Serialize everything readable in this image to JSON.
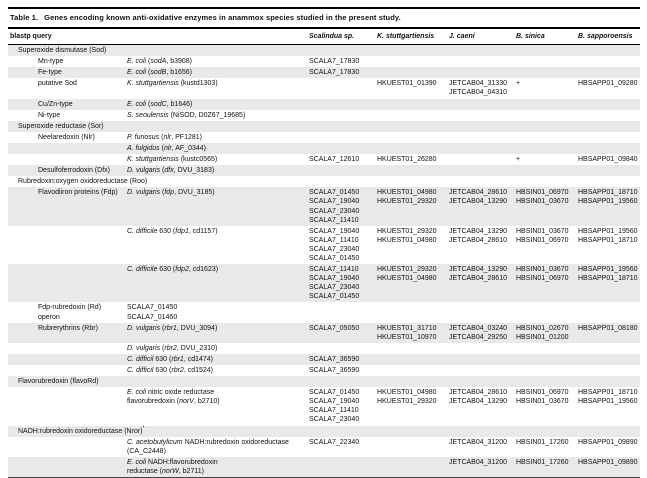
{
  "table": {
    "caption_label": "Table 1.",
    "caption_text": "Genes encoding known anti-oxidative enzymes in anammox species studied in the present study.",
    "columns": {
      "query": "blastp query",
      "species": [
        "Scalindua sp.",
        "K. stuttgartiensis",
        "J. caeni",
        "B. sinica",
        "B. sapporoensis"
      ]
    },
    "stripe_color": "#e9e9e9",
    "rows": [
      {
        "type": "section",
        "label": "Superoxide dismutase (Sod)",
        "sup": ""
      },
      {
        "type": "data",
        "enzyme": "Mn-type",
        "query": [
          "*E. coli* (*sodA*, b3908)"
        ],
        "sca": [
          "SCALA7_17830"
        ],
        "kst": [],
        "jca": [],
        "bsi": [],
        "bsa": []
      },
      {
        "type": "data",
        "enzyme": "Fe-type",
        "query": [
          "*E. coli* (*sodB*, b1656)"
        ],
        "sca": [
          "SCALA7_17830"
        ],
        "kst": [],
        "jca": [],
        "bsi": [],
        "bsa": []
      },
      {
        "type": "data",
        "enzyme": "putative Sod",
        "query": [
          "*K. stuttgartiensis* (kustd1303)"
        ],
        "sca": [],
        "kst": [
          "HKUEST01_01390"
        ],
        "jca": [
          "JETCAB04_31330",
          "JETCAB04_04310"
        ],
        "bsi": [
          "+"
        ],
        "bsa": [
          "HBSAPP01_09280"
        ]
      },
      {
        "type": "data",
        "enzyme": "Cu/Zn-type",
        "query": [
          "*E. coli* (*sodC*, b1646)"
        ],
        "sca": [],
        "kst": [],
        "jca": [],
        "bsi": [],
        "bsa": []
      },
      {
        "type": "data",
        "enzyme": "Ni-type",
        "query": [
          "*S. seoulensis* (NiSOD, D0Z67_19685)"
        ],
        "sca": [],
        "kst": [],
        "jca": [],
        "bsi": [],
        "bsa": []
      },
      {
        "type": "section",
        "label": "Superoxide reductase (Sor)",
        "sup": ""
      },
      {
        "type": "data",
        "enzyme": "Neelaredoxin (Nlr)",
        "query": [
          "*P. furiosus* (*nlr*, PF1281)"
        ],
        "sca": [],
        "kst": [],
        "jca": [],
        "bsi": [],
        "bsa": []
      },
      {
        "type": "data",
        "enzyme": "",
        "query": [
          "*A. fulgidus* (*nlr*, AF_0344)"
        ],
        "sca": [],
        "kst": [],
        "jca": [],
        "bsi": [],
        "bsa": []
      },
      {
        "type": "data",
        "enzyme": "",
        "query": [
          "*K. stuttgartiensis* (kustc0565)"
        ],
        "sca": [
          "SCALA7_12610"
        ],
        "kst": [
          "HKUEST01_26280"
        ],
        "jca": [],
        "bsi": [
          "+"
        ],
        "bsa": [
          "HBSAPP01_09840"
        ]
      },
      {
        "type": "data",
        "enzyme": "Desulfoferrodoxin (Dfx)",
        "query": [
          "*D. vulgaris* (*dfx*, DVU_3183)"
        ],
        "sca": [],
        "kst": [],
        "jca": [],
        "bsi": [],
        "bsa": []
      },
      {
        "type": "section",
        "label": "Rubredoxin:oxygen oxidoreductase (Roo)",
        "sup": ""
      },
      {
        "type": "data",
        "enzyme": "Flavodiiron proteins (Fdp)",
        "query": [
          "*D. vulgaris* (*fdp*, DVU_3185)"
        ],
        "sca": [
          "SCALA7_01450",
          "SCALA7_19040",
          "SCALA7_23040",
          "SCALA7_11410"
        ],
        "kst": [
          "HKUEST01_04980",
          "HKUEST01_29320"
        ],
        "jca": [
          "JETCAB04_28610",
          "JETCAB04_13290"
        ],
        "bsi": [
          "HBSIN01_06970",
          "HBSIN01_03670"
        ],
        "bsa": [
          "HBSAPP01_18710",
          "HBSAPP01_19560"
        ]
      },
      {
        "type": "data",
        "enzyme": "",
        "query": [
          "*C. difficile* 630 (*fdp1*, cd1157)"
        ],
        "sca": [
          "SCALA7_19040",
          "SCALA7_11410",
          "SCALA7_23040",
          "SCALA7_01450"
        ],
        "kst": [
          "HKUEST01_29320",
          "HKUEST01_04980"
        ],
        "jca": [
          "JETCAB04_13290",
          "JETCAB04_28610"
        ],
        "bsi": [
          "HBSIN01_03670",
          "HBSIN01_06970"
        ],
        "bsa": [
          "HBSAPP01_19560",
          "HBSAPP01_18710"
        ]
      },
      {
        "type": "data",
        "enzyme": "",
        "query": [
          "*C. difficile* 630 (*fdp2*, cd1623)"
        ],
        "sca": [
          "SCALA7_11410",
          "SCALA7_19040",
          "SCALA7_23040",
          "SCALA7_01450"
        ],
        "kst": [
          "HKUEST01_29320",
          "HKUEST01_04980"
        ],
        "jca": [
          "JETCAB04_13290",
          "JETCAB04_28610"
        ],
        "bsi": [
          "HBSIN01_03670",
          "HBSIN01_06970"
        ],
        "bsa": [
          "HBSAPP01_19560",
          "HBSAPP01_18710"
        ]
      },
      {
        "type": "data",
        "enzyme": "Fdp-rubredoxin (Rd) operon",
        "query": [
          "SCALA7_01450",
          "SCALA7_01460"
        ],
        "sca": [],
        "kst": [],
        "jca": [],
        "bsi": [],
        "bsa": []
      },
      {
        "type": "data",
        "enzyme": "Rubrerythrins (Rbr)",
        "query": [
          "*D. vulgaris* (*rbr1*, DVU_3094)"
        ],
        "sca": [
          "SCALA7_05050"
        ],
        "kst": [
          "HKUEST01_31710",
          "HKUEST01_10970"
        ],
        "jca": [
          "JETCAB04_03240",
          "JETCAB04_29250"
        ],
        "bsi": [
          "HBSIN01_02670",
          "HBSIN01_01200"
        ],
        "bsa": [
          "HBSAPP01_08180"
        ]
      },
      {
        "type": "data",
        "enzyme": "",
        "query": [
          "*D. vulgaris* (*rbr2*, DVU_2310)"
        ],
        "sca": [],
        "kst": [],
        "jca": [],
        "bsi": [],
        "bsa": []
      },
      {
        "type": "data",
        "enzyme": "",
        "query": [
          "*C. difficil* 630 (*rbr1*, cd1474)"
        ],
        "sca": [
          "SCALA7_36590"
        ],
        "kst": [],
        "jca": [],
        "bsi": [],
        "bsa": []
      },
      {
        "type": "data",
        "enzyme": "",
        "query": [
          "*C. difficil* 630 (*rbr2*, cd1524)"
        ],
        "sca": [
          "SCALA7_36590"
        ],
        "kst": [],
        "jca": [],
        "bsi": [],
        "bsa": []
      },
      {
        "type": "section",
        "label": "Flavorubredoxin (flavoRd)",
        "sup": ""
      },
      {
        "type": "data",
        "enzyme": "",
        "query": [
          "*E. coli* nitric oxide reductase",
          "flavorubredoxin (*norV*, b2710)"
        ],
        "sca": [
          "SCALA7_01450",
          "SCALA7_19040",
          "SCALA7_11410",
          "SCALA7_23040"
        ],
        "kst": [
          "HKUEST01_04980",
          "HKUEST01_29320"
        ],
        "jca": [
          "JETCAB04_28610",
          "JETCAB04_13290"
        ],
        "bsi": [
          "HBSIN01_06970",
          "HBSIN01_03670"
        ],
        "bsa": [
          "HBSAPP01_18710",
          "HBSAPP01_19560"
        ]
      },
      {
        "type": "section",
        "label": "NADH:rubredoxin oxidoreductase (Nror)",
        "sup": "*"
      },
      {
        "type": "data",
        "enzyme": "",
        "query": [
          "*C. acetobutylicum* NADH:rubredoxin oxidoreductase",
          "(CA_C2448)"
        ],
        "sca": [
          "SCALA7_22340"
        ],
        "kst": [],
        "jca": [
          "JETCAB04_31200"
        ],
        "bsi": [
          "HBSIN01_17260"
        ],
        "bsa": [
          "HBSAPP01_09890"
        ]
      },
      {
        "type": "data",
        "enzyme": "",
        "query": [
          "*E. coli* NADH:flavorubredoxin",
          "reductase (*norW*, b2711)"
        ],
        "sca": [],
        "kst": [],
        "jca": [
          "JETCAB04_31200"
        ],
        "bsi": [
          "HBSIN01_17260"
        ],
        "bsa": [
          "HBSAPP01_09890"
        ]
      }
    ]
  }
}
